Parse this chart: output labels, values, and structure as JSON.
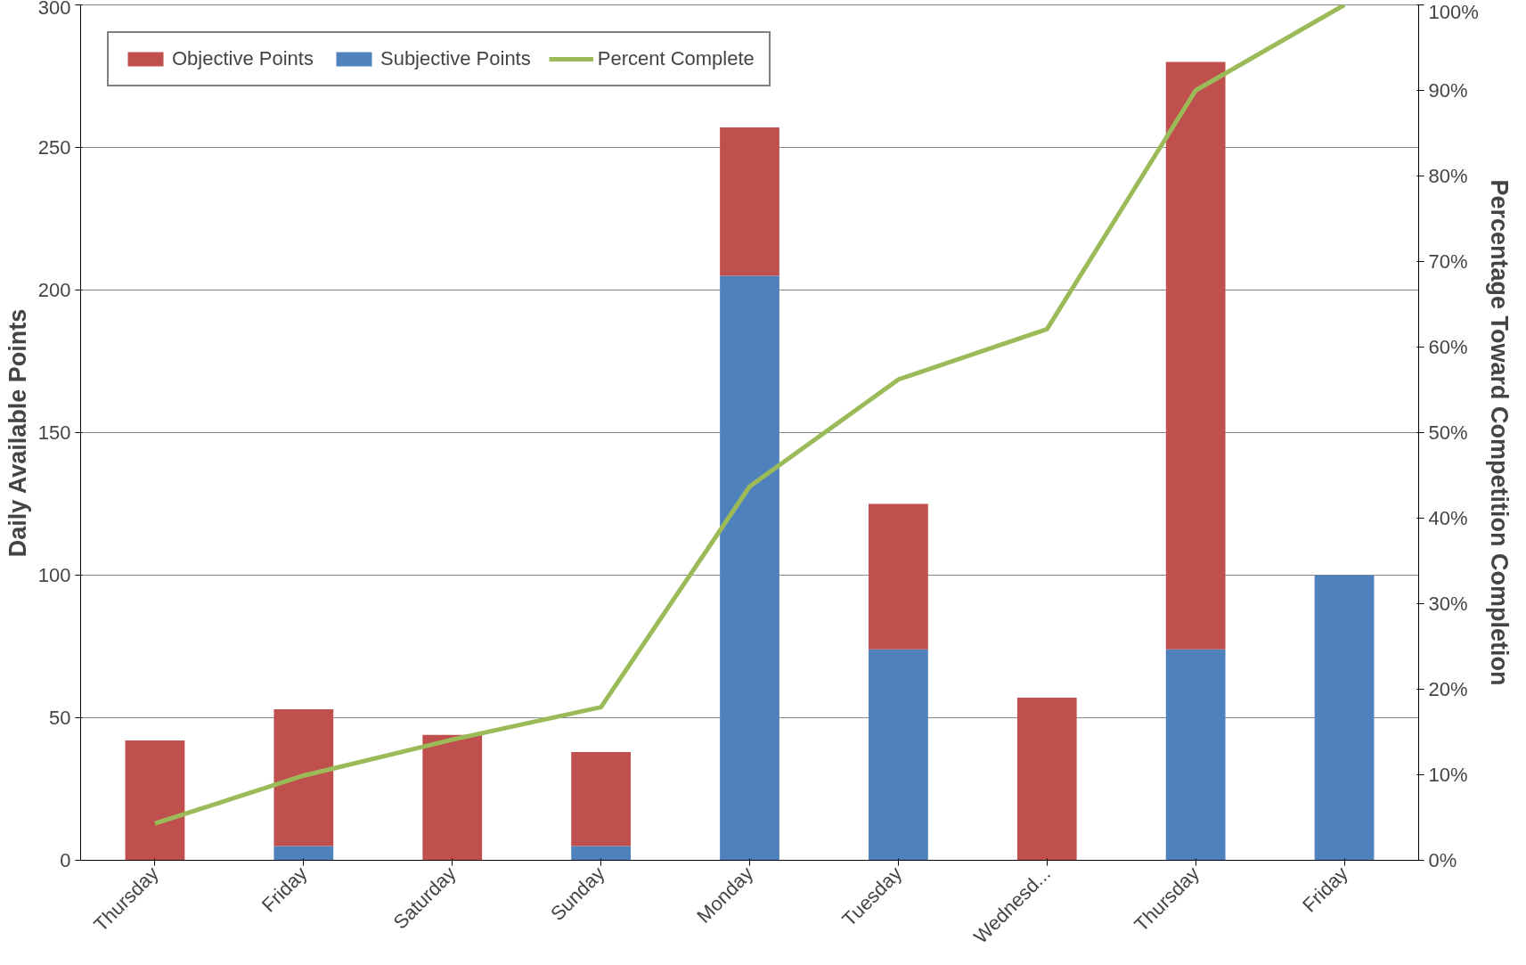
{
  "chart_data": {
    "type": "bar",
    "stacked": true,
    "ylabel": "Daily Available Points",
    "y2label": "Percentage Toward Competition Completion",
    "categories": [
      "Thursday",
      "Friday",
      "Saturday",
      "Sunday",
      "Monday",
      "Tuesday",
      "Wednesd...",
      "Thursday",
      "Friday"
    ],
    "series": [
      {
        "name": "Subjective Points",
        "color": "#4f81bd",
        "values": [
          0,
          5,
          0,
          5,
          205,
          74,
          0,
          74,
          100
        ]
      },
      {
        "name": "Objective Points",
        "color": "#c0504d",
        "values": [
          42,
          48,
          44,
          33,
          52,
          51,
          57,
          206,
          0
        ]
      },
      {
        "name": "Percent Complete",
        "type": "line",
        "axis": "y2",
        "color": "#9bbb59",
        "values": [
          4.3,
          9.9,
          14.1,
          17.9,
          43.7,
          56.2,
          62.1,
          90.0,
          100
        ]
      }
    ],
    "ylim": [
      0,
      300
    ],
    "yticks": [
      0,
      50,
      100,
      150,
      200,
      250,
      300
    ],
    "y2lim": [
      0,
      100
    ],
    "y2ticks": [
      {
        "value": 0,
        "label": "0%"
      },
      {
        "value": 10,
        "label": "10%"
      },
      {
        "value": 20,
        "label": "20%"
      },
      {
        "value": 30,
        "label": "30%"
      },
      {
        "value": 40,
        "label": "40%"
      },
      {
        "value": 50,
        "label": "50%"
      },
      {
        "value": 60,
        "label": "60%"
      },
      {
        "value": 70,
        "label": "70%"
      },
      {
        "value": 80,
        "label": "80%"
      },
      {
        "value": 90,
        "label": "90%"
      },
      {
        "value": 100,
        "label": "100%"
      }
    ],
    "grid": "y",
    "legend": "top left",
    "marker": "none",
    "line_style": "solid"
  }
}
